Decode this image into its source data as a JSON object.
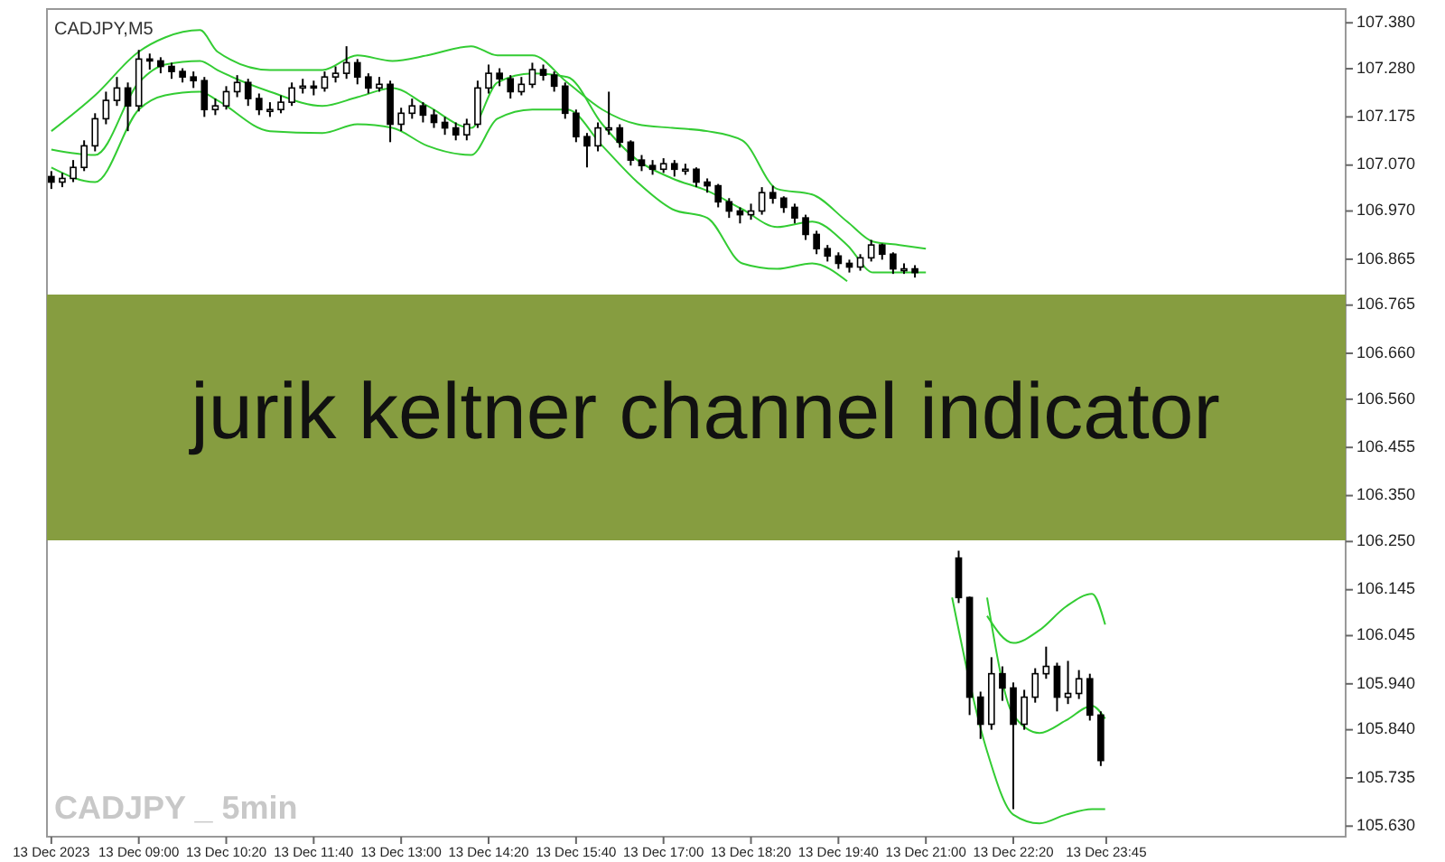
{
  "chart_data": {
    "type": "candlestick",
    "title": "jurik keltner channel indicator",
    "subtitle": "CADJPY,M5",
    "annotations": [
      "CADJPY _ 5min"
    ],
    "x": [
      "2023-12-13T07:40",
      "2023-12-13T07:50",
      "2023-12-13T08:00",
      "2023-12-13T08:10",
      "2023-12-13T08:20",
      "2023-12-13T08:30",
      "2023-12-13T08:40",
      "2023-12-13T08:50",
      "2023-12-13T09:00",
      "2023-12-13T09:10",
      "2023-12-13T09:20",
      "2023-12-13T09:30",
      "2023-12-13T09:40",
      "2023-12-13T09:50",
      "2023-12-13T10:00",
      "2023-12-13T10:10",
      "2023-12-13T10:20",
      "2023-12-13T10:30",
      "2023-12-13T10:40",
      "2023-12-13T10:50",
      "2023-12-13T11:00",
      "2023-12-13T11:10",
      "2023-12-13T11:20",
      "2023-12-13T11:30",
      "2023-12-13T11:40",
      "2023-12-13T11:50",
      "2023-12-13T12:00",
      "2023-12-13T12:10",
      "2023-12-13T12:20",
      "2023-12-13T12:30",
      "2023-12-13T12:40",
      "2023-12-13T12:50",
      "2023-12-13T13:00",
      "2023-12-13T13:10",
      "2023-12-13T13:20",
      "2023-12-13T13:30",
      "2023-12-13T13:40",
      "2023-12-13T13:50",
      "2023-12-13T14:00",
      "2023-12-13T14:10",
      "2023-12-13T14:20",
      "2023-12-13T14:30",
      "2023-12-13T14:40",
      "2023-12-13T14:50",
      "2023-12-13T15:00",
      "2023-12-13T15:10",
      "2023-12-13T15:20",
      "2023-12-13T15:30",
      "2023-12-13T15:40",
      "2023-12-13T15:50",
      "2023-12-13T16:00",
      "2023-12-13T16:10",
      "2023-12-13T16:20",
      "2023-12-13T16:30",
      "2023-12-13T16:40",
      "2023-12-13T16:50",
      "2023-12-13T17:00",
      "2023-12-13T17:10",
      "2023-12-13T17:20",
      "2023-12-13T17:30",
      "2023-12-13T17:40",
      "2023-12-13T17:50",
      "2023-12-13T18:00",
      "2023-12-13T18:10",
      "2023-12-13T18:20",
      "2023-12-13T18:30",
      "2023-12-13T18:40",
      "2023-12-13T18:50",
      "2023-12-13T19:00",
      "2023-12-13T19:10",
      "2023-12-13T19:20",
      "2023-12-13T19:30",
      "2023-12-13T19:40",
      "2023-12-13T19:50",
      "2023-12-13T20:00",
      "2023-12-13T20:10",
      "2023-12-13T20:20",
      "2023-12-13T20:30",
      "2023-12-13T20:40",
      "2023-12-13T20:50",
      "2023-12-13T21:30",
      "2023-12-13T21:40",
      "2023-12-13T21:50",
      "2023-12-13T22:00",
      "2023-12-13T22:10",
      "2023-12-13T22:20",
      "2023-12-13T22:30",
      "2023-12-13T22:40",
      "2023-12-13T22:50",
      "2023-12-13T23:00",
      "2023-12-13T23:10",
      "2023-12-13T23:20",
      "2023-12-13T23:30",
      "2023-12-13T23:40"
    ],
    "ohlc": [
      [
        107.045,
        107.057,
        107.018,
        107.033
      ],
      [
        107.033,
        107.053,
        107.022,
        107.041
      ],
      [
        107.041,
        107.081,
        107.033,
        107.065
      ],
      [
        107.065,
        107.124,
        107.057,
        107.112
      ],
      [
        107.112,
        107.183,
        107.1,
        107.171
      ],
      [
        107.171,
        107.23,
        107.159,
        107.211
      ],
      [
        107.211,
        107.262,
        107.199,
        107.238
      ],
      [
        107.238,
        107.25,
        107.144,
        107.199
      ],
      [
        107.199,
        107.321,
        107.187,
        107.301
      ],
      [
        107.301,
        107.313,
        107.278,
        107.297
      ],
      [
        107.297,
        107.305,
        107.27,
        107.285
      ],
      [
        107.285,
        107.293,
        107.258,
        107.274
      ],
      [
        107.274,
        107.281,
        107.25,
        107.262
      ],
      [
        107.262,
        107.274,
        107.238,
        107.254
      ],
      [
        107.254,
        107.262,
        107.175,
        107.191
      ],
      [
        107.191,
        107.215,
        107.179,
        107.199
      ],
      [
        107.199,
        107.242,
        107.191,
        107.23
      ],
      [
        107.23,
        107.266,
        107.218,
        107.25
      ],
      [
        107.25,
        107.258,
        107.199,
        107.215
      ],
      [
        107.215,
        107.226,
        107.179,
        107.191
      ],
      [
        107.191,
        107.207,
        107.175,
        107.191
      ],
      [
        107.191,
        107.222,
        107.183,
        107.207
      ],
      [
        107.207,
        107.25,
        107.199,
        107.238
      ],
      [
        107.238,
        107.258,
        107.226,
        107.242
      ],
      [
        107.242,
        107.254,
        107.222,
        107.238
      ],
      [
        107.238,
        107.274,
        107.23,
        107.262
      ],
      [
        107.262,
        107.285,
        107.25,
        107.27
      ],
      [
        107.27,
        107.329,
        107.258,
        107.293
      ],
      [
        107.293,
        107.301,
        107.246,
        107.262
      ],
      [
        107.262,
        107.27,
        107.226,
        107.238
      ],
      [
        107.238,
        107.262,
        107.23,
        107.246
      ],
      [
        107.246,
        107.254,
        107.12,
        107.159
      ],
      [
        107.159,
        107.195,
        107.144,
        107.183
      ],
      [
        107.183,
        107.215,
        107.171,
        107.199
      ],
      [
        107.199,
        107.207,
        107.163,
        107.179
      ],
      [
        107.179,
        107.191,
        107.151,
        107.163
      ],
      [
        107.163,
        107.175,
        107.136,
        107.151
      ],
      [
        107.151,
        107.163,
        107.124,
        107.136
      ],
      [
        107.136,
        107.171,
        107.124,
        107.159
      ],
      [
        107.159,
        107.254,
        107.151,
        107.238
      ],
      [
        107.238,
        107.289,
        107.226,
        107.27
      ],
      [
        107.27,
        107.281,
        107.242,
        107.258
      ],
      [
        107.258,
        107.266,
        107.215,
        107.23
      ],
      [
        107.23,
        107.262,
        107.222,
        107.246
      ],
      [
        107.246,
        107.293,
        107.238,
        107.278
      ],
      [
        107.278,
        107.289,
        107.254,
        107.266
      ],
      [
        107.266,
        107.274,
        107.23,
        107.242
      ],
      [
        107.242,
        107.25,
        107.171,
        107.183
      ],
      [
        107.183,
        107.191,
        107.12,
        107.132
      ],
      [
        107.132,
        107.14,
        107.065,
        107.112
      ],
      [
        107.112,
        107.163,
        107.1,
        107.151
      ],
      [
        107.151,
        107.23,
        107.136,
        107.151
      ],
      [
        107.151,
        107.159,
        107.108,
        107.12
      ],
      [
        107.12,
        107.124,
        107.069,
        107.081
      ],
      [
        107.081,
        107.092,
        107.057,
        107.069
      ],
      [
        107.069,
        107.081,
        107.049,
        107.061
      ],
      [
        107.061,
        107.085,
        107.053,
        107.073
      ],
      [
        107.073,
        107.081,
        107.045,
        107.061
      ],
      [
        107.061,
        107.073,
        107.049,
        107.061
      ],
      [
        107.061,
        107.065,
        107.022,
        107.033
      ],
      [
        107.033,
        107.041,
        107.01,
        107.025
      ],
      [
        107.025,
        107.029,
        106.978,
        106.99
      ],
      [
        106.99,
        106.998,
        106.955,
        106.97
      ],
      [
        106.97,
        106.978,
        106.943,
        106.962
      ],
      [
        106.962,
        106.986,
        106.951,
        106.97
      ],
      [
        106.97,
        107.022,
        106.962,
        107.01
      ],
      [
        107.01,
        107.025,
        106.986,
        106.998
      ],
      [
        106.998,
        107.002,
        106.966,
        106.978
      ],
      [
        106.978,
        106.986,
        106.943,
        106.955
      ],
      [
        106.955,
        106.962,
        106.907,
        106.919
      ],
      [
        106.919,
        106.927,
        106.876,
        106.888
      ],
      [
        106.888,
        106.896,
        106.86,
        106.872
      ],
      [
        106.872,
        106.88,
        106.844,
        106.856
      ],
      [
        106.856,
        106.864,
        106.836,
        106.848
      ],
      [
        106.848,
        106.876,
        106.84,
        106.868
      ],
      [
        106.868,
        106.907,
        106.86,
        106.896
      ],
      [
        106.896,
        106.899,
        106.864,
        106.876
      ],
      [
        106.876,
        106.88,
        106.833,
        106.844
      ],
      [
        106.844,
        106.856,
        106.833,
        106.844
      ],
      [
        106.844,
        106.852,
        106.825,
        106.836
      ],
      [
        106.214,
        106.23,
        106.116,
        106.128
      ],
      [
        106.128,
        106.13,
        105.872,
        105.911
      ],
      [
        105.911,
        105.923,
        105.82,
        105.852
      ],
      [
        105.852,
        105.998,
        105.84,
        105.962
      ],
      [
        105.962,
        105.978,
        105.903,
        105.931
      ],
      [
        105.931,
        105.943,
        105.667,
        105.852
      ],
      [
        105.852,
        105.927,
        105.84,
        105.911
      ],
      [
        105.911,
        105.974,
        105.899,
        105.962
      ],
      [
        105.962,
        106.021,
        105.951,
        105.978
      ],
      [
        105.978,
        105.986,
        105.88,
        105.911
      ],
      [
        105.911,
        105.99,
        105.896,
        105.919
      ],
      [
        105.919,
        105.97,
        105.907,
        105.951
      ],
      [
        105.951,
        105.962,
        105.86,
        105.872
      ],
      [
        105.872,
        105.88,
        105.761,
        105.773
      ]
    ],
    "series": [
      {
        "type": "line",
        "color": "#33cc33",
        "x": [
          "2023-12-13T07:40",
          "2023-12-13T08:20",
          "2023-12-13T09:00",
          "2023-12-13T09:24",
          "2023-12-13T09:56",
          "2023-12-13T10:12",
          "2023-12-13T11:00",
          "2023-12-13T11:48",
          "2023-12-13T12:20",
          "2023-12-13T12:52",
          "2023-12-13T13:24",
          "2023-12-13T14:04",
          "2023-12-13T14:28",
          "2023-12-13T15:00",
          "2023-12-13T15:32",
          "2023-12-13T16:04",
          "2023-12-13T16:36",
          "2023-12-13T17:08",
          "2023-12-13T17:40",
          "2023-12-13T18:12",
          "2023-12-13T18:44",
          "2023-12-13T19:16",
          "2023-12-13T19:48",
          "2023-12-13T20:12",
          "2023-12-13T20:36",
          "2023-12-13T21:00",
          "2023-12-13T21:12",
          "2023-12-13T21:24",
          "2023-12-13T21:56",
          "2023-12-13T22:20",
          "2023-12-13T22:44",
          "2023-12-13T23:08",
          "2023-12-13T23:32",
          "2023-12-13T23:44"
        ],
        "values": [
          107.144,
          107.222,
          107.317,
          107.348,
          107.364,
          107.317,
          107.277,
          107.277,
          107.309,
          107.297,
          107.309,
          107.329,
          107.309,
          107.309,
          107.25,
          107.191,
          107.159,
          107.151,
          107.144,
          107.124,
          107.018,
          107.006,
          106.947,
          106.903,
          106.896,
          106.888,
          null,
          null,
          106.088,
          106.029,
          106.057,
          106.108,
          106.136,
          106.069
        ]
      },
      {
        "type": "line",
        "color": "#33cc33",
        "x": [
          "2023-12-13T07:40",
          "2023-12-13T08:20",
          "2023-12-13T09:00",
          "2023-12-13T09:24",
          "2023-12-13T09:56",
          "2023-12-13T10:12",
          "2023-12-13T11:00",
          "2023-12-13T11:48",
          "2023-12-13T12:20",
          "2023-12-13T12:52",
          "2023-12-13T13:24",
          "2023-12-13T14:04",
          "2023-12-13T14:28",
          "2023-12-13T15:00",
          "2023-12-13T15:32",
          "2023-12-13T16:04",
          "2023-12-13T16:36",
          "2023-12-13T17:08",
          "2023-12-13T17:40",
          "2023-12-13T18:12",
          "2023-12-13T18:44",
          "2023-12-13T19:16",
          "2023-12-13T19:48",
          "2023-12-13T20:12",
          "2023-12-13T20:36",
          "2023-12-13T21:00",
          "2023-12-13T21:12",
          "2023-12-13T21:24",
          "2023-12-13T21:56",
          "2023-12-13T22:20",
          "2023-12-13T22:44",
          "2023-12-13T23:08",
          "2023-12-13T23:32",
          "2023-12-13T23:44"
        ],
        "values": [
          107.104,
          107.092,
          107.25,
          107.289,
          107.297,
          107.277,
          107.23,
          107.199,
          107.218,
          107.238,
          107.199,
          107.151,
          107.25,
          107.27,
          107.262,
          107.159,
          107.081,
          107.041,
          107.014,
          106.974,
          106.935,
          106.947,
          106.896,
          106.836,
          106.836,
          106.836,
          null,
          null,
          106.128,
          105.872,
          105.833,
          105.86,
          105.892,
          105.864
        ]
      },
      {
        "type": "line",
        "color": "#33cc33",
        "x": [
          "2023-12-13T07:40",
          "2023-12-13T08:20",
          "2023-12-13T09:00",
          "2023-12-13T09:24",
          "2023-12-13T09:56",
          "2023-12-13T10:12",
          "2023-12-13T11:00",
          "2023-12-13T11:48",
          "2023-12-13T12:20",
          "2023-12-13T12:52",
          "2023-12-13T13:24",
          "2023-12-13T14:04",
          "2023-12-13T14:28",
          "2023-12-13T15:00",
          "2023-12-13T15:32",
          "2023-12-13T16:04",
          "2023-12-13T16:36",
          "2023-12-13T17:08",
          "2023-12-13T17:40",
          "2023-12-13T18:12",
          "2023-12-13T18:44",
          "2023-12-13T19:16",
          "2023-12-13T19:48",
          "2023-12-13T20:12",
          "2023-12-13T20:36",
          "2023-12-13T21:00",
          "2023-12-13T21:12",
          "2023-12-13T21:24",
          "2023-12-13T21:56",
          "2023-12-13T22:20",
          "2023-12-13T22:44",
          "2023-12-13T23:08",
          "2023-12-13T23:32",
          "2023-12-13T23:44"
        ],
        "values": [
          107.065,
          107.033,
          107.191,
          107.222,
          107.23,
          107.211,
          107.144,
          107.14,
          107.159,
          107.151,
          107.112,
          107.092,
          107.171,
          107.191,
          107.191,
          107.112,
          107.033,
          106.974,
          106.955,
          106.856,
          106.844,
          106.856,
          106.817,
          null,
          null,
          null,
          null,
          106.128,
          105.793,
          105.655,
          105.636,
          105.655,
          105.667,
          105.667
        ]
      }
    ],
    "xlim": [
      "2023-12-13T07:36",
      "2023-12-14T03:24"
    ],
    "ylim": [
      105.607,
      107.41
    ],
    "xticks": [
      {
        "value": "2023-12-13T07:40",
        "label": "13 Dec 2023"
      },
      {
        "value": "2023-12-13T09:00",
        "label": "13 Dec 09:00"
      },
      {
        "value": "2023-12-13T10:20",
        "label": "13 Dec 10:20"
      },
      {
        "value": "2023-12-13T11:40",
        "label": "13 Dec 11:40"
      },
      {
        "value": "2023-12-13T13:00",
        "label": "13 Dec 13:00"
      },
      {
        "value": "2023-12-13T14:20",
        "label": "13 Dec 14:20"
      },
      {
        "value": "2023-12-13T15:40",
        "label": "13 Dec 15:40"
      },
      {
        "value": "2023-12-13T17:00",
        "label": "13 Dec 17:00"
      },
      {
        "value": "2023-12-13T18:20",
        "label": "13 Dec 18:20"
      },
      {
        "value": "2023-12-13T19:40",
        "label": "13 Dec 19:40"
      },
      {
        "value": "2023-12-13T21:00",
        "label": "13 Dec 21:00"
      },
      {
        "value": "2023-12-13T22:20",
        "label": "13 Dec 22:20"
      },
      {
        "value": "2023-12-13T23:45",
        "label": "13 Dec 23:45"
      }
    ],
    "yticks": [
      {
        "value": 107.38,
        "label": "107.380"
      },
      {
        "value": 107.28,
        "label": "107.280"
      },
      {
        "value": 107.175,
        "label": "107.175"
      },
      {
        "value": 107.07,
        "label": "107.070"
      },
      {
        "value": 106.97,
        "label": "106.970"
      },
      {
        "value": 106.865,
        "label": "106.865"
      },
      {
        "value": 106.765,
        "label": "106.765"
      },
      {
        "value": 106.66,
        "label": "106.660"
      },
      {
        "value": 106.56,
        "label": "106.560"
      },
      {
        "value": 106.455,
        "label": "106.455"
      },
      {
        "value": 106.35,
        "label": "106.350"
      },
      {
        "value": 106.25,
        "label": "106.250"
      },
      {
        "value": 106.145,
        "label": "106.145"
      },
      {
        "value": 106.045,
        "label": "106.045"
      },
      {
        "value": 105.94,
        "label": "105.940"
      },
      {
        "value": 105.84,
        "label": "105.840"
      },
      {
        "value": 105.735,
        "label": "105.735"
      },
      {
        "value": 105.63,
        "label": "105.630"
      }
    ]
  }
}
